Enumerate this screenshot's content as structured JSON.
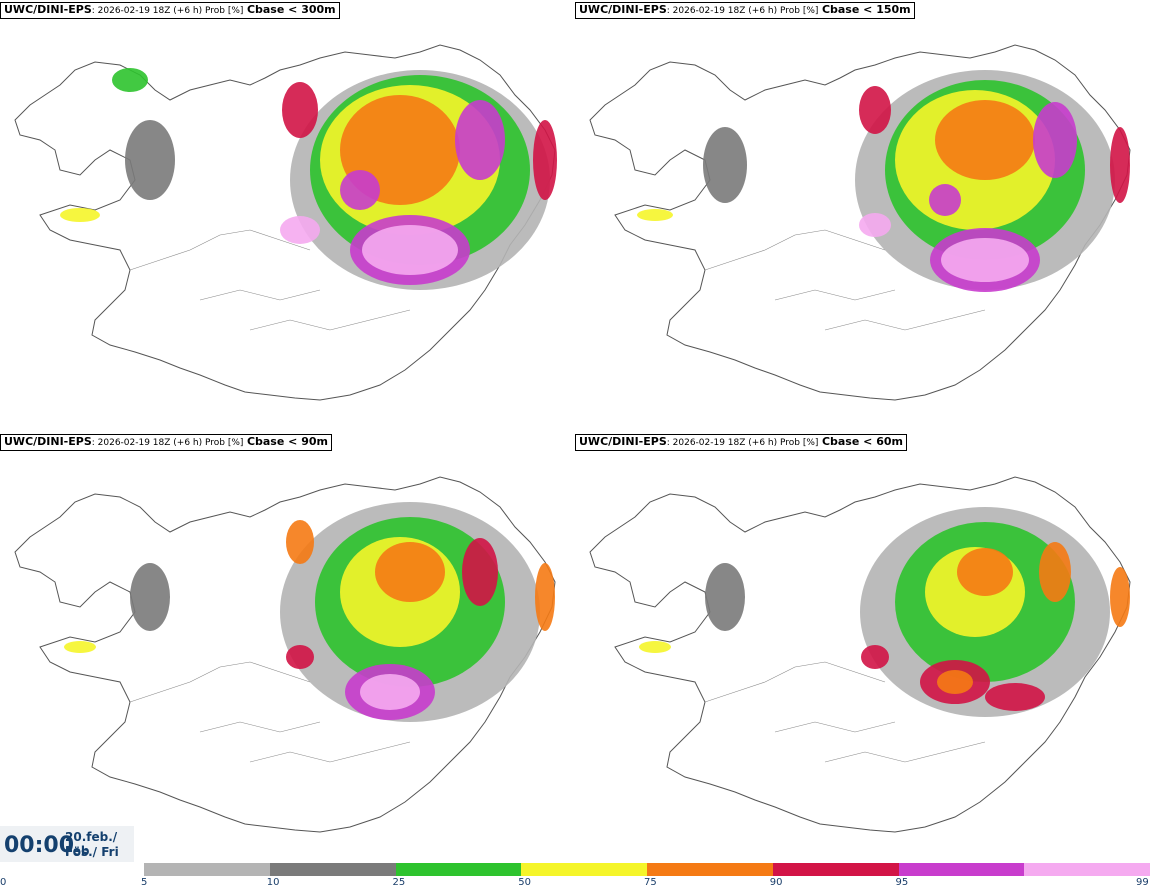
{
  "panels": [
    {
      "model": "UWC/DINI-EPS",
      "meta": ": 2026-02-19 18Z (+6 h) Prob [%]",
      "label": "Cbase < 300m"
    },
    {
      "model": "UWC/DINI-EPS",
      "meta": ": 2026-02-19 18Z (+6 h) Prob [%]",
      "label": "Cbase < 150m"
    },
    {
      "model": "UWC/DINI-EPS",
      "meta": ": 2026-02-19 18Z (+6 h) Prob [%]",
      "label": "Cbase < 90m"
    },
    {
      "model": "UWC/DINI-EPS",
      "meta": ": 2026-02-19 18Z (+6 h) Prob [%]",
      "label": "Cbase < 60m"
    }
  ],
  "valid_time": {
    "time": "00:00",
    "date_line1": "20.feb./ Feb",
    "date_line2": "Fös./ Fri"
  },
  "legend": {
    "ticks": [
      "0",
      "5",
      "10",
      "25",
      "50",
      "75",
      "90",
      "95",
      "99"
    ],
    "colors": [
      "#b4b4b4",
      "#7a7a7a",
      "#2ec32e",
      "#f5f52a",
      "#f57a14",
      "#d21446",
      "#c83ccd",
      "#f5aaf0"
    ]
  },
  "colors": {
    "land_outline": "#555555",
    "ocean": "#ffffff",
    "label_text": "#14406e"
  }
}
